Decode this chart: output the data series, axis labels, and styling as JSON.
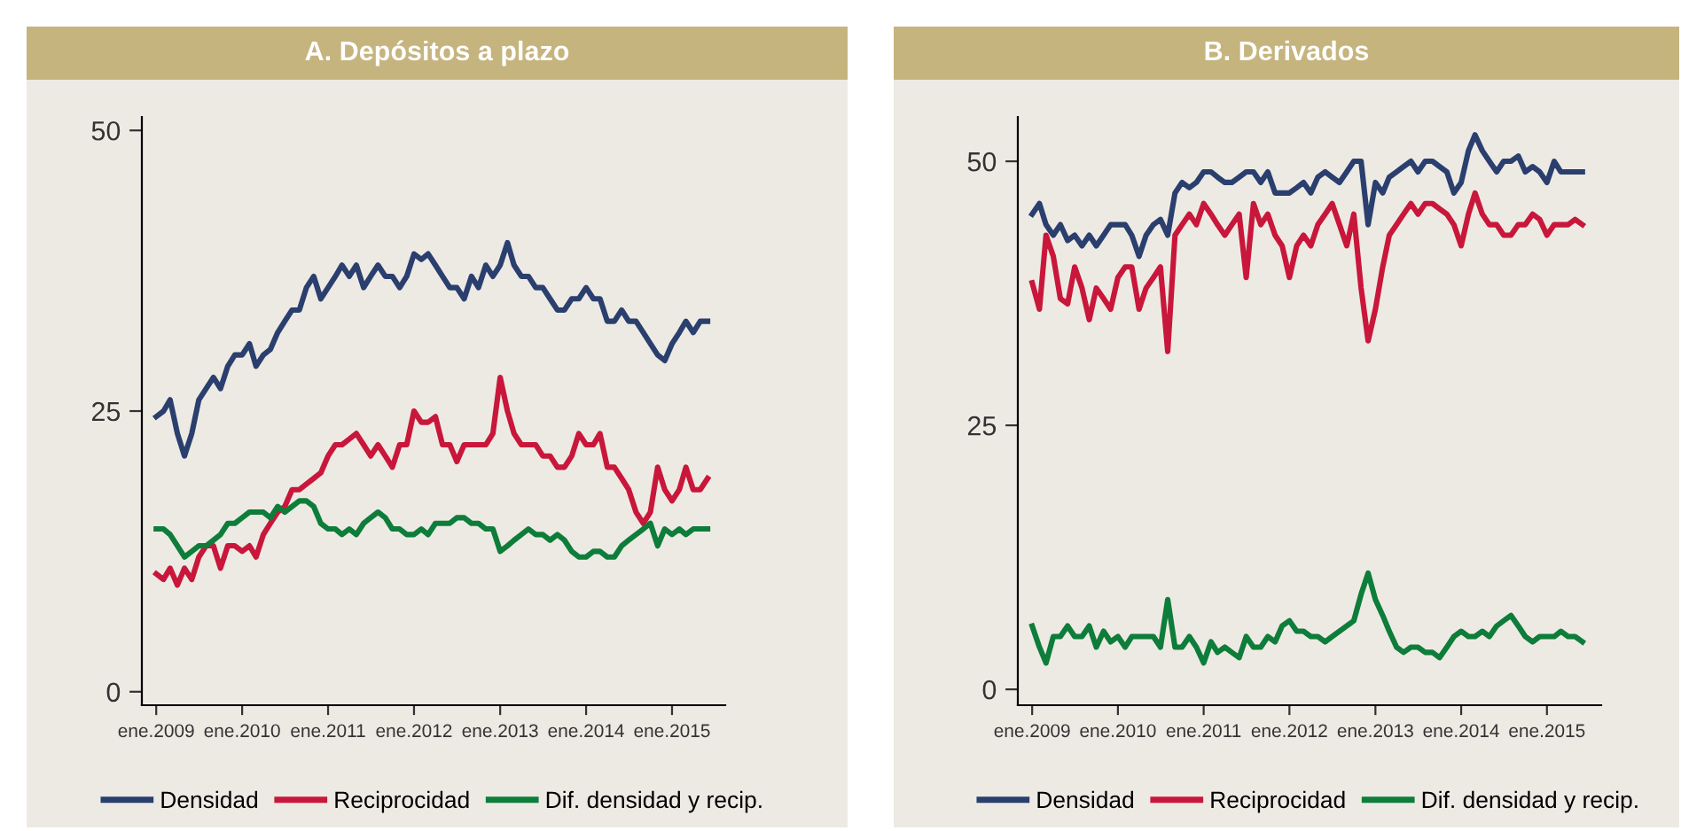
{
  "chart_data": [
    {
      "type": "line",
      "title": "A. Depósitos a plazo",
      "x": [
        "2009-01",
        "2009-02",
        "2009-03",
        "2009-04",
        "2009-05",
        "2009-06",
        "2009-07",
        "2009-08",
        "2009-09",
        "2009-10",
        "2009-11",
        "2009-12",
        "2010-01",
        "2010-02",
        "2010-03",
        "2010-04",
        "2010-05",
        "2010-06",
        "2010-07",
        "2010-08",
        "2010-09",
        "2010-10",
        "2010-11",
        "2010-12",
        "2011-01",
        "2011-02",
        "2011-03",
        "2011-04",
        "2011-05",
        "2011-06",
        "2011-07",
        "2011-08",
        "2011-09",
        "2011-10",
        "2011-11",
        "2011-12",
        "2012-01",
        "2012-02",
        "2012-03",
        "2012-04",
        "2012-05",
        "2012-06",
        "2012-07",
        "2012-08",
        "2012-09",
        "2012-10",
        "2012-11",
        "2012-12",
        "2013-01",
        "2013-02",
        "2013-03",
        "2013-04",
        "2013-05",
        "2013-06",
        "2013-07",
        "2013-08",
        "2013-09",
        "2013-10",
        "2013-11",
        "2013-12",
        "2014-01",
        "2014-02",
        "2014-03",
        "2014-04",
        "2014-05",
        "2014-06",
        "2014-07",
        "2014-08",
        "2014-09",
        "2014-10",
        "2014-11",
        "2014-12",
        "2015-01",
        "2015-02",
        "2015-03",
        "2015-04",
        "2015-05",
        "2015-06"
      ],
      "series": [
        {
          "name": "Densidad",
          "color": "#2b3f6e",
          "values": [
            24.5,
            25,
            26,
            23,
            21,
            23,
            26,
            27,
            28,
            27,
            29,
            30,
            30,
            31,
            29,
            30,
            30.5,
            32,
            33,
            34,
            34,
            36,
            37,
            35,
            36,
            37,
            38,
            37,
            38,
            36,
            37,
            38,
            37,
            37,
            36,
            37,
            39,
            38.5,
            39,
            38,
            37,
            36,
            36,
            35,
            37,
            36,
            38,
            37,
            38,
            40,
            38,
            37,
            37,
            36,
            36,
            35,
            34,
            34,
            35,
            35,
            36,
            35,
            35,
            33,
            33,
            34,
            33,
            33,
            32,
            31,
            30,
            29.5,
            31,
            32,
            33,
            32,
            33,
            33
          ]
        },
        {
          "name": "Reciprocidad",
          "color": "#c8173a",
          "values": [
            10.5,
            10,
            11,
            9.5,
            11,
            10,
            12,
            13,
            13,
            11,
            13,
            13,
            12.5,
            13,
            12,
            14,
            15,
            16,
            16.5,
            18,
            18,
            18.5,
            19,
            19.5,
            21,
            22,
            22,
            22.5,
            23,
            22,
            21,
            22,
            21,
            20,
            22,
            22,
            25,
            24,
            24,
            24.5,
            22,
            22,
            20.5,
            22,
            22,
            22,
            22,
            23,
            28,
            25,
            23,
            22,
            22,
            22,
            21,
            21,
            20,
            20,
            21,
            23,
            22,
            22,
            23,
            20,
            20,
            19,
            18,
            16,
            15,
            16,
            20,
            18,
            17,
            18,
            20,
            18,
            18,
            19
          ]
        },
        {
          "name": "Dif. densidad y recip.",
          "color": "#0e7d3a",
          "values": [
            14.5,
            14.5,
            14,
            13,
            12,
            12.5,
            13,
            13,
            13.5,
            14,
            15,
            15,
            15.5,
            16,
            16,
            16,
            15.5,
            16.5,
            16,
            16.5,
            17,
            17,
            16.5,
            15,
            14.5,
            14.5,
            14,
            14.5,
            14,
            15,
            15.5,
            16,
            15.5,
            14.5,
            14.5,
            14,
            14,
            14.5,
            14,
            15,
            15,
            15,
            15.5,
            15.5,
            15,
            15,
            14.5,
            14.5,
            12.5,
            13,
            13.5,
            14,
            14.5,
            14,
            14,
            13.5,
            14,
            13.5,
            12.5,
            12,
            12,
            12.5,
            12.5,
            12,
            12,
            13,
            13.5,
            14,
            14.5,
            15,
            13,
            14.5,
            14,
            14.5,
            14,
            14.5,
            14.5,
            14.5
          ]
        }
      ],
      "xlim": [
        "2008-11-01",
        "2015-08-15"
      ],
      "xticks": [
        {
          "value": "2009-01-01",
          "label": "ene.2009"
        },
        {
          "value": "2010-01-01",
          "label": "ene.2010"
        },
        {
          "value": "2011-01-01",
          "label": "ene.2011"
        },
        {
          "value": "2012-01-01",
          "label": "ene.2012"
        },
        {
          "value": "2013-01-01",
          "label": "ene.2013"
        },
        {
          "value": "2014-01-01",
          "label": "ene.2014"
        },
        {
          "value": "2015-01-01",
          "label": "ene.2015"
        }
      ],
      "ylim": [
        -1.2,
        51.2
      ],
      "yticks": [
        0,
        25,
        50
      ],
      "grid": false,
      "legend": "bottom",
      "marker": "none",
      "line_style": "solid"
    },
    {
      "type": "line",
      "title": "B. Derivados",
      "x": [
        "2009-01",
        "2009-02",
        "2009-03",
        "2009-04",
        "2009-05",
        "2009-06",
        "2009-07",
        "2009-08",
        "2009-09",
        "2009-10",
        "2009-11",
        "2009-12",
        "2010-01",
        "2010-02",
        "2010-03",
        "2010-04",
        "2010-05",
        "2010-06",
        "2010-07",
        "2010-08",
        "2010-09",
        "2010-10",
        "2010-11",
        "2010-12",
        "2011-01",
        "2011-02",
        "2011-03",
        "2011-04",
        "2011-05",
        "2011-06",
        "2011-07",
        "2011-08",
        "2011-09",
        "2011-10",
        "2011-11",
        "2011-12",
        "2012-01",
        "2012-02",
        "2012-03",
        "2012-04",
        "2012-05",
        "2012-06",
        "2012-07",
        "2012-08",
        "2012-09",
        "2012-10",
        "2012-11",
        "2012-12",
        "2013-01",
        "2013-02",
        "2013-03",
        "2013-04",
        "2013-05",
        "2013-06",
        "2013-07",
        "2013-08",
        "2013-09",
        "2013-10",
        "2013-11",
        "2013-12",
        "2014-01",
        "2014-02",
        "2014-03",
        "2014-04",
        "2014-05",
        "2014-06",
        "2014-07",
        "2014-08",
        "2014-09",
        "2014-10",
        "2014-11",
        "2014-12",
        "2015-01",
        "2015-02",
        "2015-03",
        "2015-04",
        "2015-05",
        "2015-06"
      ],
      "series": [
        {
          "name": "Densidad",
          "color": "#2b3f6e",
          "values": [
            45,
            46,
            44,
            43,
            44,
            42.5,
            43,
            42,
            43,
            42,
            43,
            44,
            44,
            44,
            43,
            41,
            43,
            44,
            44.5,
            43,
            47,
            48,
            47.5,
            48,
            49,
            49,
            48.5,
            48,
            48,
            48.5,
            49,
            49,
            48,
            49,
            47,
            47,
            47,
            47.5,
            48,
            47,
            48.5,
            49,
            48.5,
            48,
            49,
            50,
            50,
            44,
            48,
            47,
            48.5,
            49,
            49.5,
            50,
            49,
            50,
            50,
            49.5,
            49,
            47,
            48,
            51,
            52.5,
            51,
            50,
            49,
            50,
            50,
            50.5,
            49,
            49.5,
            49,
            48,
            50,
            49,
            49,
            49,
            49
          ]
        },
        {
          "name": "Reciprocidad",
          "color": "#c8173a",
          "values": [
            38.5,
            36,
            43,
            41,
            37,
            36.5,
            40,
            38,
            35,
            38,
            37,
            36,
            39,
            40,
            40,
            36,
            38,
            39,
            40,
            32,
            43,
            44,
            45,
            44,
            46,
            45,
            44,
            43,
            44,
            45,
            39,
            46,
            44,
            45,
            43,
            42,
            39,
            42,
            43,
            42,
            44,
            45,
            46,
            44,
            42,
            45,
            38,
            33,
            36,
            40,
            43,
            44,
            45,
            46,
            45,
            46,
            46,
            45.5,
            45,
            44,
            42,
            45,
            47,
            45,
            44,
            44,
            43,
            43,
            44,
            44,
            45,
            44.5,
            43,
            44,
            44,
            44,
            44.5,
            44
          ]
        },
        {
          "name": "Dif. densidad y recip.",
          "color": "#0e7d3a",
          "values": [
            6,
            4,
            2.5,
            5,
            5,
            6,
            5,
            5,
            6,
            4,
            5.5,
            4.5,
            5,
            4,
            5,
            5,
            5,
            5,
            4,
            8.5,
            4,
            4,
            5,
            4,
            2.5,
            4.5,
            3.5,
            4,
            3.5,
            3,
            5,
            4,
            4,
            5,
            4.5,
            6,
            6.5,
            5.5,
            5.5,
            5,
            5,
            4.5,
            5,
            5.5,
            6,
            6.5,
            9,
            11,
            8.5,
            7,
            5.5,
            4,
            3.5,
            4,
            4,
            3.5,
            3.5,
            3,
            4,
            5,
            5.5,
            5,
            5,
            5.5,
            5,
            6,
            6.5,
            7,
            6,
            5,
            4.5,
            5,
            5,
            5,
            5.5,
            5,
            5,
            4.5
          ]
        }
      ],
      "xlim": [
        "2008-11-01",
        "2015-08-20"
      ],
      "xticks": [
        {
          "value": "2009-01-01",
          "label": "ene.2009"
        },
        {
          "value": "2010-01-01",
          "label": "ene.2010"
        },
        {
          "value": "2011-01-01",
          "label": "ene.2011"
        },
        {
          "value": "2012-01-01",
          "label": "ene.2012"
        },
        {
          "value": "2013-01-01",
          "label": "ene.2013"
        },
        {
          "value": "2014-01-01",
          "label": "ene.2014"
        },
        {
          "value": "2015-01-01",
          "label": "ene.2015"
        }
      ],
      "ylim": [
        -1.5,
        54.2
      ],
      "yticks": [
        0,
        25,
        50
      ],
      "grid": false,
      "legend": "bottom",
      "marker": "none",
      "line_style": "solid"
    }
  ]
}
